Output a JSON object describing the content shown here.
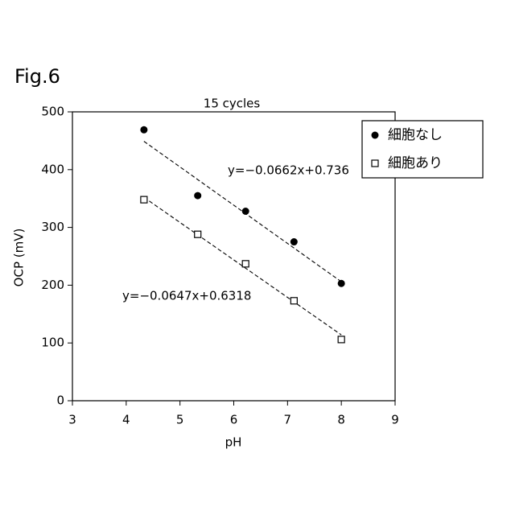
{
  "figure_label": "Fig.6",
  "chart_data": {
    "type": "scatter",
    "title": "15 cycles",
    "xlabel": "pH",
    "ylabel": "OCP (mV)",
    "xlim": [
      3,
      9
    ],
    "xticks": [
      3,
      4,
      5,
      6,
      7,
      8,
      9
    ],
    "ylim": [
      0,
      500
    ],
    "yticks": [
      0,
      100,
      200,
      300,
      400,
      500
    ],
    "legend": "upper right",
    "series": [
      {
        "name": "細胞なし",
        "color": "#000000",
        "marker": "circle",
        "x": [
          4.33,
          5.33,
          6.22,
          7.12,
          8.0
        ],
        "values": [
          469,
          355,
          328,
          275,
          203
        ],
        "trend": {
          "x": [
            4.33,
            8.0
          ],
          "values": [
            449,
            206
          ],
          "label": "y=−0.0662x+0.736"
        }
      },
      {
        "name": "細胞あり",
        "color": "#000000",
        "marker": "square",
        "x": [
          4.33,
          5.33,
          6.22,
          7.12,
          8.0
        ],
        "values": [
          348,
          288,
          237,
          173,
          106
        ],
        "trend": {
          "x": [
            4.33,
            8.0
          ],
          "values": [
            352,
            114
          ],
          "label": "y=−0.0647x+0.6318"
        }
      }
    ]
  }
}
